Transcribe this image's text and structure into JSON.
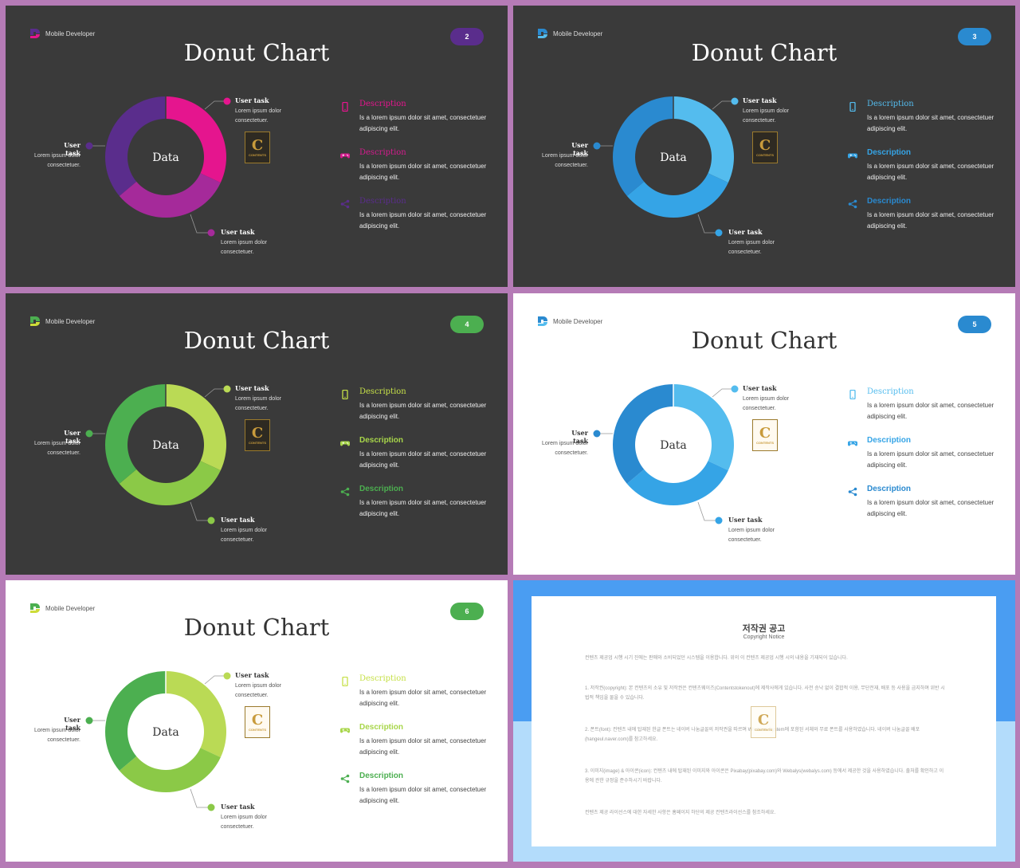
{
  "slides": [
    {
      "brand": "Mobile Developer",
      "page": "2",
      "title": "Donut Chart",
      "center": "Data",
      "theme": "dark",
      "colors": {
        "badge": "#5a2d8c",
        "seg1": "#e5158e",
        "seg2": "#a52a9a",
        "seg3": "#5a2d8c",
        "logo1": "#e5158e",
        "logo2": "#5a2d8c"
      },
      "tasks": [
        {
          "title": "User task",
          "body": "Lorem ipsum dolor consectetuer."
        },
        {
          "title": "User task",
          "body": "Lorem ipsum dolor consectetuer."
        },
        {
          "title": "User task",
          "body": "Lorem ipsum dolor consectetuer."
        }
      ],
      "descriptions": [
        {
          "title": "Description",
          "body": "Is a lorem ipsum dolor sit amet, consectetuer adipiscing elit.",
          "icon": "phone-icon",
          "color": "#e5158e",
          "bold": false
        },
        {
          "title": "Description",
          "body": "Is a lorem ipsum dolor sit amet, consectetuer adipiscing elit.",
          "icon": "gamepad-icon",
          "color": "#d51b8e",
          "bold": false
        },
        {
          "title": "Description",
          "body": "Is a lorem ipsum dolor sit amet, consectetuer adipiscing elit.",
          "icon": "share-icon",
          "color": "#5a2d8c",
          "bold": false
        }
      ]
    },
    {
      "brand": "Mobile Developer",
      "page": "3",
      "title": "Donut Chart",
      "center": "Data",
      "theme": "dark",
      "colors": {
        "badge": "#2a8ad0",
        "seg1": "#54bcee",
        "seg2": "#35a4e6",
        "seg3": "#2a8ad0",
        "logo1": "#54bcee",
        "logo2": "#2a8ad0"
      },
      "tasks": [
        {
          "title": "User task",
          "body": "Lorem ipsum dolor consectetuer."
        },
        {
          "title": "User task",
          "body": "Lorem ipsum dolor consectetuer."
        },
        {
          "title": "User task",
          "body": "Lorem ipsum dolor consectetuer."
        }
      ],
      "descriptions": [
        {
          "title": "Description",
          "body": "Is a lorem ipsum dolor sit amet, consectetuer adipiscing elit.",
          "icon": "phone-icon",
          "color": "#54bcee",
          "bold": false
        },
        {
          "title": "Description",
          "body": "Is a lorem ipsum dolor sit amet, consectetuer adipiscing elit.",
          "icon": "gamepad-icon",
          "color": "#35a4e6",
          "bold": true
        },
        {
          "title": "Description",
          "body": "Is a lorem ipsum dolor sit amet, consectetuer adipiscing elit.",
          "icon": "share-icon",
          "color": "#2a8ad0",
          "bold": true
        }
      ]
    },
    {
      "brand": "Mobile Developer",
      "page": "4",
      "title": "Donut Chart",
      "center": "Data",
      "theme": "dark",
      "colors": {
        "badge": "#4caf50",
        "seg1": "#bada55",
        "seg2": "#8bc947",
        "seg3": "#4caf50",
        "logo1": "#cddc39",
        "logo2": "#4caf50"
      },
      "tasks": [
        {
          "title": "User task",
          "body": "Lorem ipsum dolor consectetuer."
        },
        {
          "title": "User task",
          "body": "Lorem ipsum dolor consectetuer."
        },
        {
          "title": "User task",
          "body": "Lorem ipsum dolor consectetuer."
        }
      ],
      "descriptions": [
        {
          "title": "Description",
          "body": "Is a lorem ipsum dolor sit amet, consectetuer adipiscing elit.",
          "icon": "phone-icon",
          "color": "#c6e048",
          "bold": false
        },
        {
          "title": "Description",
          "body": "Is a lorem ipsum dolor sit amet, consectetuer adipiscing elit.",
          "icon": "gamepad-icon",
          "color": "#a8d64a",
          "bold": true
        },
        {
          "title": "Description",
          "body": "Is a lorem ipsum dolor sit amet, consectetuer adipiscing elit.",
          "icon": "share-icon",
          "color": "#4caf50",
          "bold": true
        }
      ]
    },
    {
      "brand": "Mobile Developer",
      "page": "5",
      "title": "Donut Chart",
      "center": "Data",
      "theme": "light",
      "colors": {
        "badge": "#2a8ad0",
        "seg1": "#54bcee",
        "seg2": "#35a4e6",
        "seg3": "#2a8ad0",
        "logo1": "#54bcee",
        "logo2": "#2a8ad0"
      },
      "tasks": [
        {
          "title": "User task",
          "body": "Lorem ipsum dolor consectetuer."
        },
        {
          "title": "User task",
          "body": "Lorem ipsum dolor consectetuer."
        },
        {
          "title": "User task",
          "body": "Lorem ipsum dolor consectetuer."
        }
      ],
      "descriptions": [
        {
          "title": "Description",
          "body": "Is a lorem ipsum dolor sit amet, consectetuer adipiscing elit.",
          "icon": "phone-icon",
          "color": "#54bcee",
          "bold": false
        },
        {
          "title": "Description",
          "body": "Is a lorem ipsum dolor sit amet, consectetuer adipiscing elit.",
          "icon": "gamepad-icon",
          "color": "#35a4e6",
          "bold": true
        },
        {
          "title": "Description",
          "body": "Is a lorem ipsum dolor sit amet, consectetuer adipiscing elit.",
          "icon": "share-icon",
          "color": "#2a8ad0",
          "bold": true
        }
      ]
    },
    {
      "brand": "Mobile Developer",
      "page": "6",
      "title": "Donut Chart",
      "center": "Data",
      "theme": "light",
      "colors": {
        "badge": "#4caf50",
        "seg1": "#bada55",
        "seg2": "#8bc947",
        "seg3": "#4caf50",
        "logo1": "#cddc39",
        "logo2": "#4caf50"
      },
      "tasks": [
        {
          "title": "User task",
          "body": "Lorem ipsum dolor consectetuer."
        },
        {
          "title": "User task",
          "body": "Lorem ipsum dolor consectetuer."
        },
        {
          "title": "User task",
          "body": "Lorem ipsum dolor consectetuer."
        }
      ],
      "descriptions": [
        {
          "title": "Description",
          "body": "Is a lorem ipsum dolor sit amet, consectetuer adipiscing elit.",
          "icon": "phone-icon",
          "color": "#c6e048",
          "bold": false
        },
        {
          "title": "Description",
          "body": "Is a lorem ipsum dolor sit amet, consectetuer adipiscing elit.",
          "icon": "gamepad-icon",
          "color": "#a8d64a",
          "bold": true
        },
        {
          "title": "Description",
          "body": "Is a lorem ipsum dolor sit amet, consectetuer adipiscing elit.",
          "icon": "share-icon",
          "color": "#4caf50",
          "bold": true
        }
      ]
    }
  ],
  "stamp": {
    "letter": "C",
    "text": "CONTENTS"
  },
  "notice": {
    "title": "저작권 공고",
    "subtitle": "Copyright Notice",
    "paragraphs": [
      "컨텐츠 제공업 시행 시기 진에는 판매와 소비되었던 시스템을 이용합니다. 위의 이 컨텐츠 제공업 시행 시의 내용을 기재되어 있습니다.",
      "1. 저작권(copyright): 본 컨텐츠의 소유 및 저작권은 컨텐츠웨이즈(Contentstokenout)에 제작사에게 있습니다. 사전 승낙 없이 결합적 이용, 무단전재, 배포 등 사용을 금지하며 위반 시 법적 책임을 물을 수 있습니다.",
      "2. 폰트(font): 컨텐츠 내에 탑재된 한글 폰트는 네이버 나눔글꼴의 저작권을 따르며 Windows System에 포함된 서체와 무료 폰트를 사용하였습니다. 네이버 나눔글꼴 배포(hangeul.naver.com)를 참고하세요.",
      "3. 이미지(image) & 아이콘(icon): 컨텐츠 내에 탑재된 이미지와 아이콘은 Pixabay(pixabay.com)와 Webalys(webalys.com) 등에서 제공한 것을 사용하였습니다. 출처를 확인하고 이용에 관한 규정을 준수하시기 바랍니다.",
      "컨텐츠 제공 라이선스에 대한 자세한 사항은 홈페이지 하단의 제공 컨텐츠라이선스를 참조하세요."
    ]
  }
}
